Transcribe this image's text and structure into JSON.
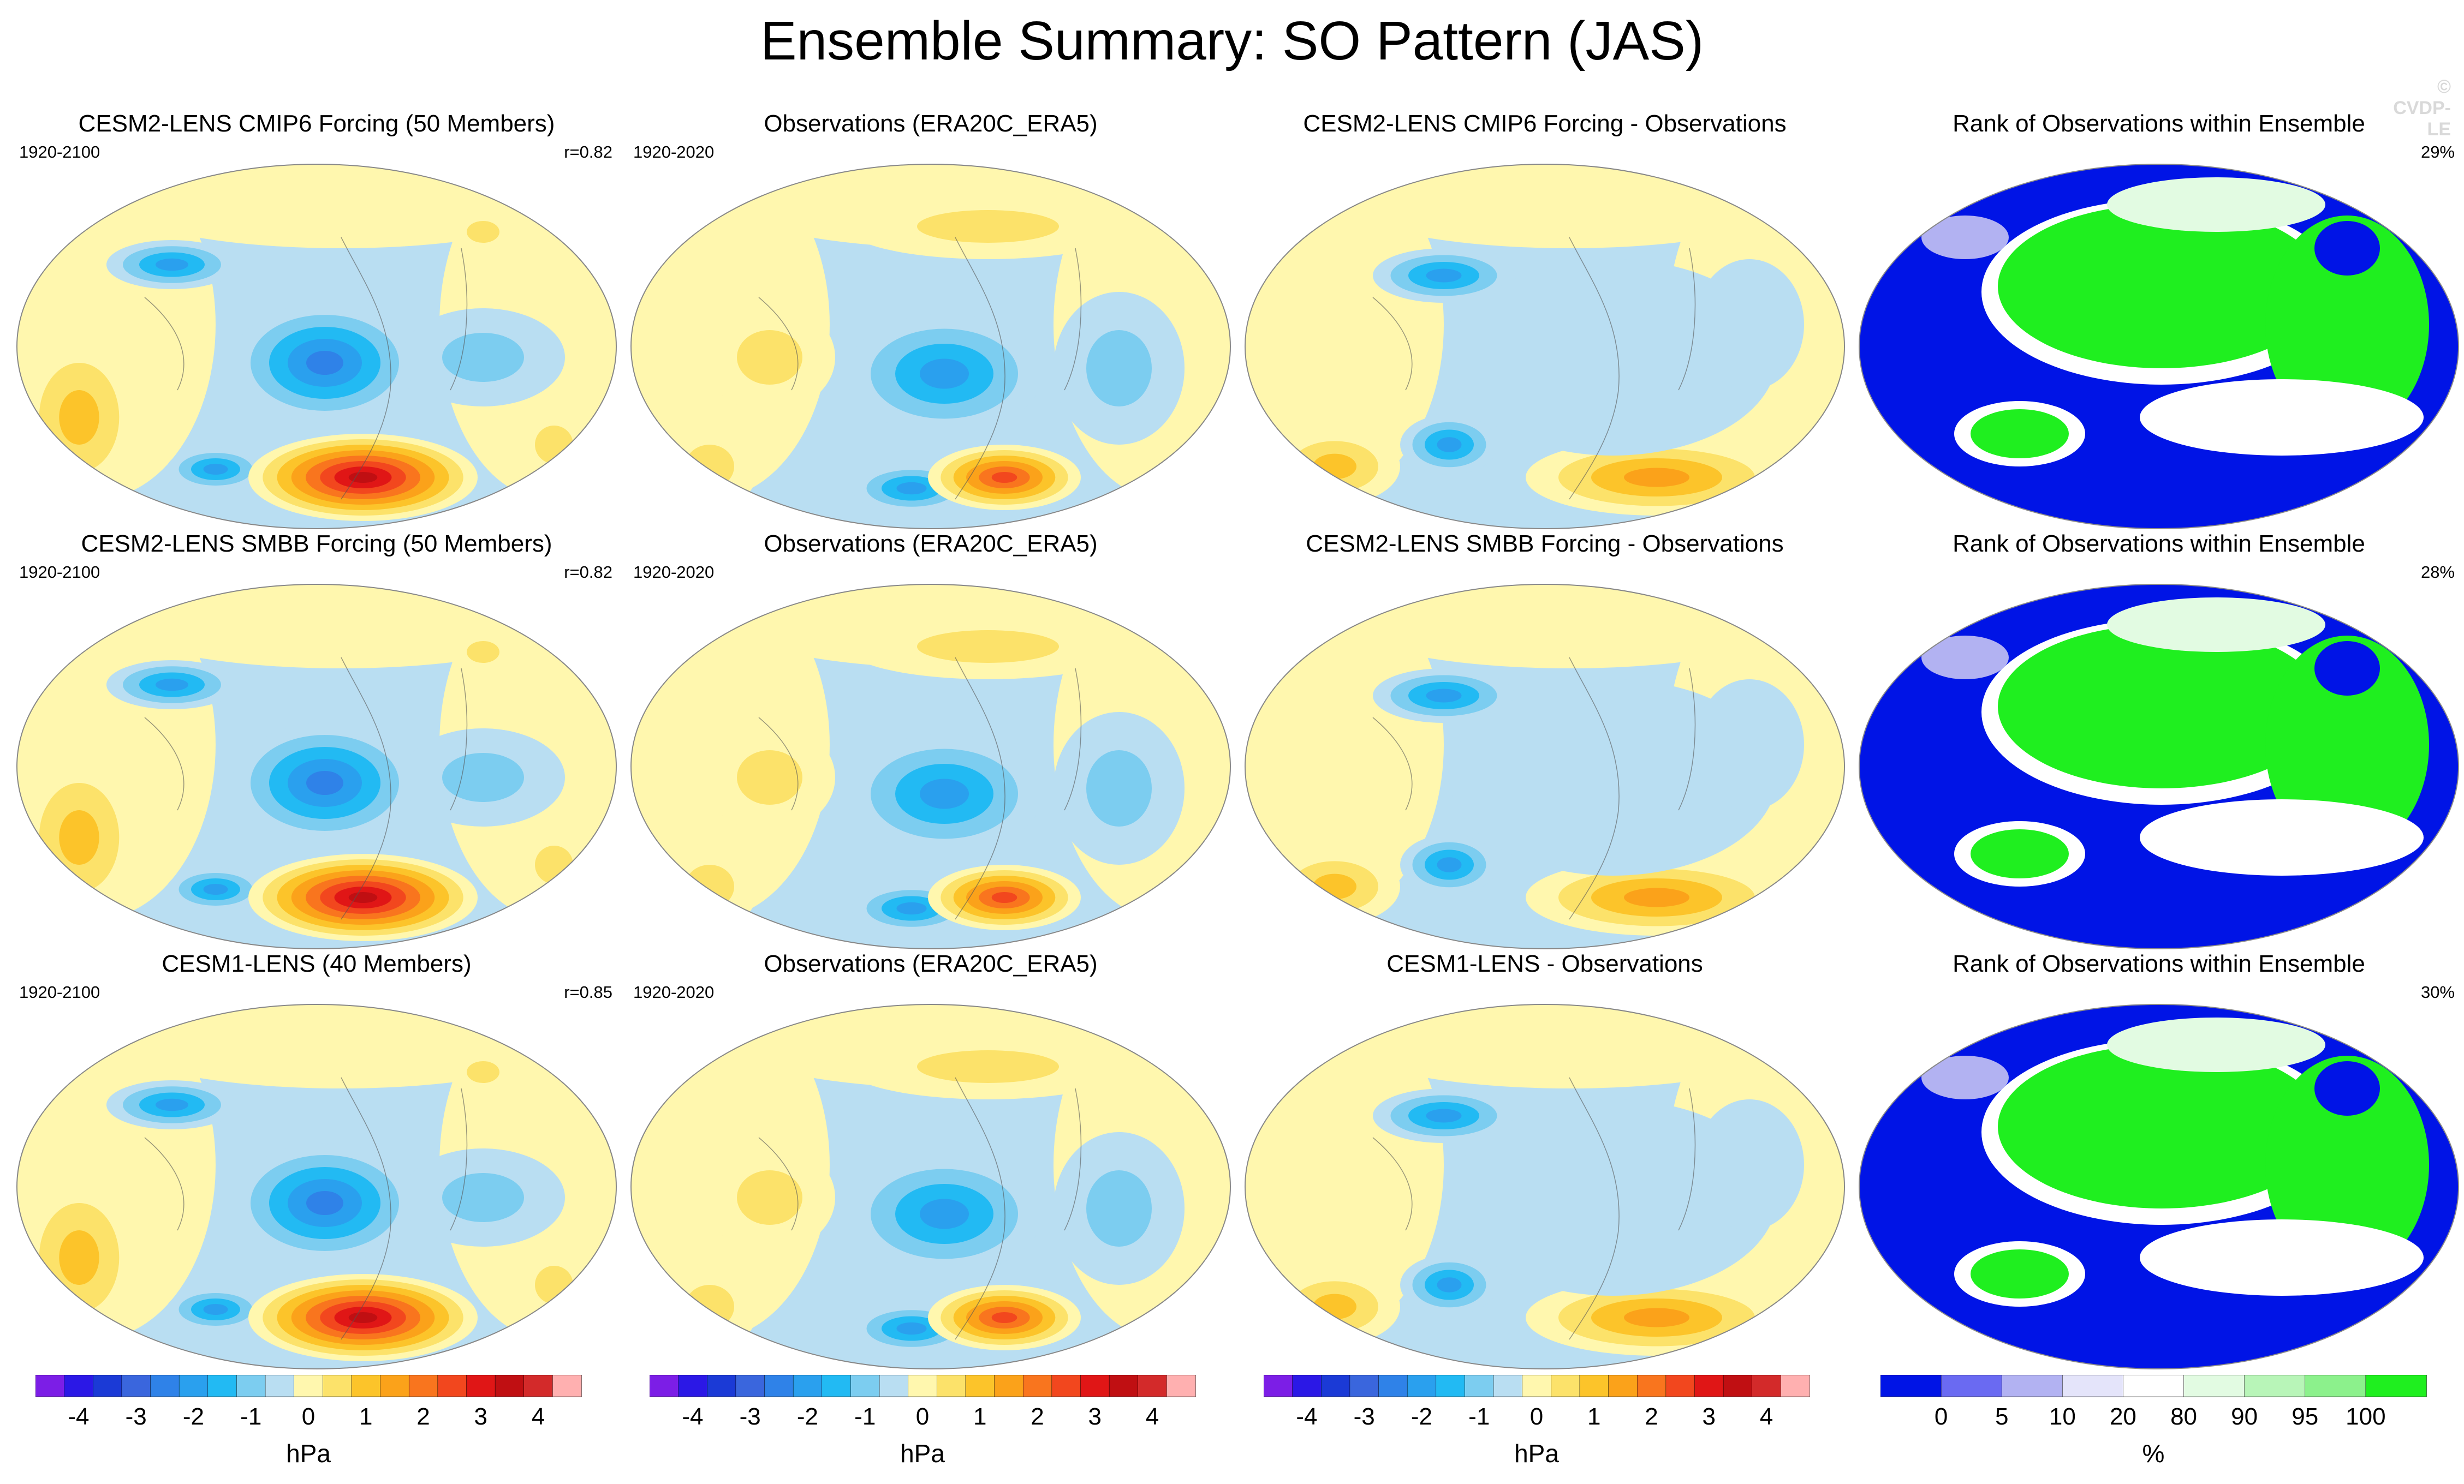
{
  "page": {
    "title": "Ensemble Summary: SO Pattern (JAS)",
    "copyright": "© CVDP-LE"
  },
  "colors": {
    "hpa_scale": [
      "#7c1ee6",
      "#2b18e6",
      "#1b3ad6",
      "#3a66dd",
      "#2f82e8",
      "#2aa0ee",
      "#22baf3",
      "#7ccdf0",
      "#b9def2",
      "#fff7ae",
      "#fce26a",
      "#fcc42a",
      "#fba21a",
      "#f9751e",
      "#f2471e",
      "#e01616",
      "#c00f12",
      "#d32a2a",
      "#ffb0b0"
    ],
    "rank_scale": [
      "#0014e6",
      "#6a6af2",
      "#b2b2f2",
      "#e4e4fa",
      "#ffffff",
      "#e2fbe2",
      "#b8f5b8",
      "#8cf18c",
      "#1fef1f"
    ],
    "map_edge": "#888888"
  },
  "rows": [
    {
      "panels": [
        {
          "kind": "model",
          "title": "CESM2-LENS CMIP6 Forcing (50 Members)",
          "years": "1920-2100",
          "corner": "r=0.82"
        },
        {
          "kind": "obs",
          "title": "Observations (ERA20C_ERA5)",
          "years": "1920-2020",
          "corner": ""
        },
        {
          "kind": "diff",
          "title": "CESM2-LENS CMIP6 Forcing - Observations",
          "years": "",
          "corner": ""
        },
        {
          "kind": "rank",
          "title": "Rank of Observations within Ensemble",
          "years": "",
          "corner": "29%"
        }
      ]
    },
    {
      "panels": [
        {
          "kind": "model",
          "title": "CESM2-LENS SMBB Forcing (50 Members)",
          "years": "1920-2100",
          "corner": "r=0.82"
        },
        {
          "kind": "obs",
          "title": "Observations (ERA20C_ERA5)",
          "years": "1920-2020",
          "corner": ""
        },
        {
          "kind": "diff",
          "title": "CESM2-LENS SMBB Forcing - Observations",
          "years": "",
          "corner": ""
        },
        {
          "kind": "rank",
          "title": "Rank of Observations within Ensemble",
          "years": "",
          "corner": "28%"
        }
      ]
    },
    {
      "panels": [
        {
          "kind": "model",
          "title": "CESM1-LENS (40 Members)",
          "years": "1920-2100",
          "corner": "r=0.85"
        },
        {
          "kind": "obs",
          "title": "Observations (ERA20C_ERA5)",
          "years": "1920-2020",
          "corner": ""
        },
        {
          "kind": "diff",
          "title": "CESM1-LENS - Observations",
          "years": "",
          "corner": ""
        },
        {
          "kind": "rank",
          "title": "Rank of Observations within Ensemble",
          "years": "",
          "corner": "30%"
        }
      ]
    }
  ],
  "colorbars": [
    {
      "unit": "hPa",
      "labels": [
        "-4",
        "-3",
        "-2",
        "-1",
        "0",
        "1",
        "2",
        "3",
        "4"
      ]
    },
    {
      "unit": "hPa",
      "labels": [
        "-4",
        "-3",
        "-2",
        "-1",
        "0",
        "1",
        "2",
        "3",
        "4"
      ]
    },
    {
      "unit": "hPa",
      "labels": [
        "-4",
        "-3",
        "-2",
        "-1",
        "0",
        "1",
        "2",
        "3",
        "4"
      ]
    },
    {
      "unit": "%",
      "labels": [
        "0",
        "5",
        "10",
        "20",
        "80",
        "90",
        "95",
        "100"
      ]
    }
  ],
  "chart_data": {
    "type": "heatmap",
    "title": "Ensemble Summary: SO Pattern (JAS)",
    "panel_titles": [
      [
        "CESM2-LENS CMIP6 Forcing (50 Members)",
        "Observations (ERA20C_ERA5)",
        "CESM2-LENS CMIP6 Forcing - Observations",
        "Rank of Observations within Ensemble"
      ],
      [
        "CESM2-LENS SMBB Forcing (50 Members)",
        "Observations (ERA20C_ERA5)",
        "CESM2-LENS SMBB Forcing - Observations",
        "Rank of Observations within Ensemble"
      ],
      [
        "CESM1-LENS (40 Members)",
        "Observations (ERA20C_ERA5)",
        "CESM1-LENS - Observations",
        "Rank of Observations within Ensemble"
      ]
    ],
    "pattern_correlations": [
      0.82,
      0.82,
      0.85
    ],
    "rank_percent": [
      29,
      28,
      30
    ],
    "hpa_levels": [
      -4.5,
      -4,
      -3.5,
      -3,
      -2.5,
      -2,
      -1.5,
      -1,
      -0.5,
      0,
      0.5,
      1,
      1.5,
      2,
      2.5,
      3,
      3.5,
      4,
      4.5
    ],
    "rank_levels": [
      0,
      5,
      10,
      20,
      80,
      90,
      95,
      100
    ]
  }
}
